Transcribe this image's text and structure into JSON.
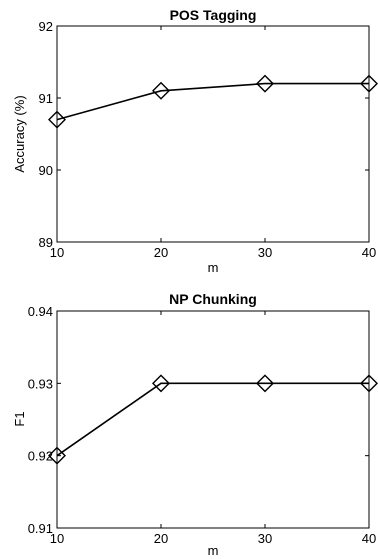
{
  "chart_data": [
    {
      "type": "line",
      "title": "POS Tagging",
      "xlabel": "m",
      "ylabel": "Accuracy (%)",
      "x": [
        10,
        20,
        30,
        40
      ],
      "series": [
        {
          "values": [
            90.7,
            91.1,
            91.2,
            91.2
          ]
        }
      ],
      "xlim": [
        10,
        40
      ],
      "ylim": [
        89,
        92
      ],
      "xticks": [
        "10",
        "20",
        "30",
        "40"
      ],
      "yticks": [
        "89",
        "90",
        "91",
        "92"
      ],
      "marker": "diamond",
      "grid": false
    },
    {
      "type": "line",
      "title": "NP Chunking",
      "xlabel": "m",
      "ylabel": "F1",
      "x": [
        10,
        20,
        30,
        40
      ],
      "series": [
        {
          "values": [
            0.92,
            0.93,
            0.93,
            0.93
          ]
        }
      ],
      "xlim": [
        10,
        40
      ],
      "ylim": [
        0.91,
        0.94
      ],
      "xticks": [
        "10",
        "20",
        "30",
        "40"
      ],
      "yticks": [
        "0.91",
        "0.92",
        "0.93",
        "0.94"
      ],
      "marker": "diamond",
      "grid": false
    }
  ]
}
